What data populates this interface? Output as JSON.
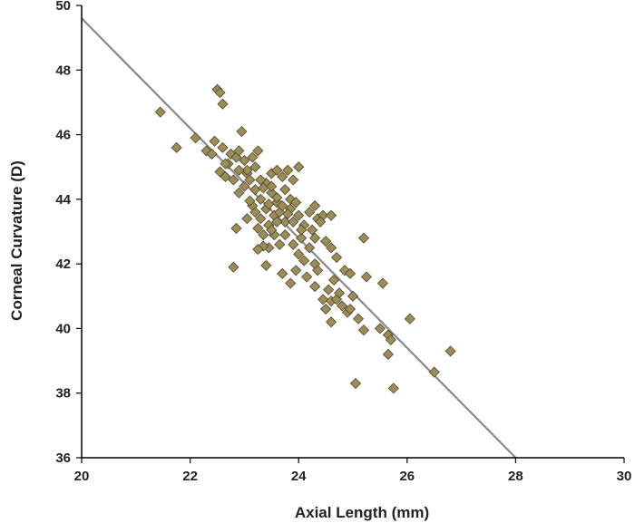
{
  "chart_data": {
    "type": "scatter",
    "xlabel": "Axial Length (mm)",
    "ylabel": "Corneal Curvature (D)",
    "xlim": [
      20,
      30
    ],
    "ylim": [
      36,
      50
    ],
    "xticks": [
      20,
      22,
      24,
      26,
      28,
      30
    ],
    "yticks": [
      36,
      38,
      40,
      42,
      44,
      46,
      48,
      50
    ],
    "grid": false,
    "marker": "diamond",
    "colors": {
      "marker_fill": "#9c8d58",
      "marker_edge": "#4e4628",
      "trendline": "#8a8a8a",
      "axis": "#000000"
    },
    "trendline": {
      "x": [
        20,
        28
      ],
      "y": [
        49.6,
        36
      ]
    },
    "points": [
      [
        21.45,
        46.7
      ],
      [
        21.75,
        45.6
      ],
      [
        22.1,
        45.9
      ],
      [
        22.3,
        45.5
      ],
      [
        22.5,
        47.4
      ],
      [
        22.55,
        47.3
      ],
      [
        22.6,
        46.95
      ],
      [
        22.45,
        45.8
      ],
      [
        22.6,
        45.6
      ],
      [
        22.55,
        44.85
      ],
      [
        22.65,
        44.7
      ],
      [
        22.7,
        45.1
      ],
      [
        22.75,
        45.4
      ],
      [
        22.85,
        45.3
      ],
      [
        22.95,
        46.1
      ],
      [
        22.9,
        45.5
      ],
      [
        23.0,
        45.2
      ],
      [
        23.05,
        44.8
      ],
      [
        23.15,
        45.3
      ],
      [
        23.2,
        45.0
      ],
      [
        23.25,
        45.5
      ],
      [
        22.8,
        44.6
      ],
      [
        22.9,
        44.2
      ],
      [
        23.0,
        44.4
      ],
      [
        23.1,
        44.6
      ],
      [
        23.2,
        44.3
      ],
      [
        23.3,
        44.0
      ],
      [
        23.15,
        43.8
      ],
      [
        23.05,
        43.4
      ],
      [
        23.2,
        43.6
      ],
      [
        23.3,
        43.4
      ],
      [
        23.4,
        43.7
      ],
      [
        23.25,
        43.1
      ],
      [
        23.35,
        42.9
      ],
      [
        23.45,
        43.2
      ],
      [
        23.55,
        43.5
      ],
      [
        23.6,
        43.9
      ],
      [
        23.5,
        44.2
      ],
      [
        23.4,
        44.5
      ],
      [
        23.5,
        44.8
      ],
      [
        23.6,
        44.9
      ],
      [
        23.7,
        44.7
      ],
      [
        23.8,
        44.9
      ],
      [
        23.9,
        44.6
      ],
      [
        24.0,
        45.0
      ],
      [
        23.75,
        44.3
      ],
      [
        23.85,
        44.0
      ],
      [
        23.65,
        43.6
      ],
      [
        23.75,
        43.3
      ],
      [
        23.85,
        43.7
      ],
      [
        23.95,
        43.9
      ],
      [
        24.0,
        43.5
      ],
      [
        24.1,
        43.2
      ],
      [
        24.2,
        43.6
      ],
      [
        24.3,
        43.8
      ],
      [
        24.35,
        43.4
      ],
      [
        24.45,
        43.5
      ],
      [
        24.6,
        43.5
      ],
      [
        23.55,
        42.9
      ],
      [
        23.65,
        42.6
      ],
      [
        23.75,
        42.9
      ],
      [
        23.9,
        42.6
      ],
      [
        24.0,
        42.3
      ],
      [
        24.1,
        42.1
      ],
      [
        24.2,
        42.5
      ],
      [
        24.3,
        42.0
      ],
      [
        24.05,
        42.8
      ],
      [
        23.45,
        42.5
      ],
      [
        23.35,
        42.55
      ],
      [
        23.25,
        42.45
      ],
      [
        22.85,
        43.1
      ],
      [
        22.8,
        41.9
      ],
      [
        23.4,
        41.95
      ],
      [
        23.7,
        41.7
      ],
      [
        23.85,
        41.4
      ],
      [
        23.95,
        41.8
      ],
      [
        24.15,
        41.6
      ],
      [
        24.3,
        41.3
      ],
      [
        24.35,
        41.8
      ],
      [
        24.45,
        40.9
      ],
      [
        24.55,
        41.2
      ],
      [
        24.6,
        40.85
      ],
      [
        24.5,
        40.6
      ],
      [
        24.6,
        40.2
      ],
      [
        24.65,
        41.5
      ],
      [
        24.7,
        40.9
      ],
      [
        24.75,
        41.1
      ],
      [
        24.8,
        40.7
      ],
      [
        24.9,
        40.5
      ],
      [
        24.95,
        40.6
      ],
      [
        24.85,
        41.8
      ],
      [
        24.95,
        41.7
      ],
      [
        25.0,
        41.0
      ],
      [
        25.1,
        40.3
      ],
      [
        25.2,
        39.95
      ],
      [
        25.25,
        41.6
      ],
      [
        25.55,
        41.4
      ],
      [
        25.5,
        40.0
      ],
      [
        25.65,
        39.8
      ],
      [
        25.7,
        39.65
      ],
      [
        25.65,
        39.2
      ],
      [
        25.75,
        38.15
      ],
      [
        25.05,
        38.3
      ],
      [
        26.05,
        40.3
      ],
      [
        26.5,
        38.65
      ],
      [
        26.8,
        39.3
      ],
      [
        25.2,
        42.8
      ],
      [
        24.6,
        42.5
      ],
      [
        24.7,
        42.2
      ],
      [
        24.5,
        42.7
      ],
      [
        22.4,
        45.4
      ],
      [
        22.65,
        45.1
      ],
      [
        23.05,
        44.9
      ],
      [
        23.3,
        44.6
      ],
      [
        23.5,
        44.4
      ],
      [
        23.6,
        44.05
      ],
      [
        23.7,
        43.8
      ],
      [
        23.8,
        43.55
      ],
      [
        23.9,
        43.3
      ],
      [
        24.05,
        43.05
      ],
      [
        23.5,
        43.05
      ],
      [
        23.6,
        43.3
      ],
      [
        22.9,
        44.9
      ],
      [
        23.35,
        44.35
      ],
      [
        23.1,
        43.95
      ],
      [
        23.45,
        43.85
      ],
      [
        24.25,
        43.05
      ],
      [
        24.4,
        43.3
      ],
      [
        24.3,
        42.8
      ]
    ]
  }
}
